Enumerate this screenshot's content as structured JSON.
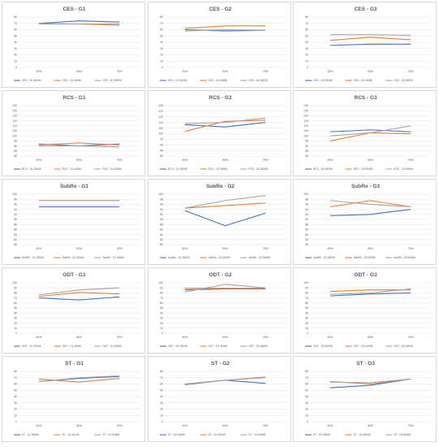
{
  "chart_data": [
    {
      "type": "line",
      "title": "CES - G1",
      "categories": [
        "25%",
        "50%",
        "75%"
      ],
      "ylim": [
        0,
        80
      ],
      "ystep": 10,
      "series": [
        {
          "name": "CES - G1 3000K",
          "values": [
            70,
            74,
            72
          ]
        },
        {
          "name": "CES - G1 4000K",
          "values": [
            70,
            69,
            67
          ]
        },
        {
          "name": "CES - G1 6000K",
          "values": [
            69,
            69,
            69
          ]
        }
      ]
    },
    {
      "type": "line",
      "title": "CES - G2",
      "categories": [
        "25%",
        "50%",
        "75%"
      ],
      "ylim": [
        0,
        80
      ],
      "ystep": 10,
      "series": [
        {
          "name": "CES - G2 3000K",
          "values": [
            60,
            58,
            59
          ]
        },
        {
          "name": "CES - G2 4000K",
          "values": [
            62,
            66,
            66
          ]
        },
        {
          "name": "CES - G2 6000K",
          "values": [
            58,
            60,
            59
          ]
        }
      ]
    },
    {
      "type": "line",
      "title": "CES - G3",
      "categories": [
        "25%",
        "50%",
        "75%"
      ],
      "ylim": [
        0,
        80
      ],
      "ystep": 10,
      "series": [
        {
          "name": "CES - G3 3000K",
          "values": [
            35,
            37,
            37
          ]
        },
        {
          "name": "CES - G3 4000K",
          "values": [
            43,
            48,
            44
          ]
        },
        {
          "name": "CES - G3 6000K",
          "values": [
            52,
            52,
            51
          ]
        }
      ]
    },
    {
      "type": "line",
      "title": "RCS - G1",
      "categories": [
        "25%",
        "50%",
        "75%"
      ],
      "ylim": [
        80,
        130
      ],
      "ystep": 5,
      "series": [
        {
          "name": "RCS - G1 3000K",
          "values": [
            92,
            90,
            92
          ]
        },
        {
          "name": "RCS - G1 4000K",
          "values": [
            91,
            93,
            91
          ]
        },
        {
          "name": "RCS - G1 6000K",
          "values": [
            90,
            90,
            89
          ]
        }
      ]
    },
    {
      "type": "line",
      "title": "RCS - G2",
      "categories": [
        "25%",
        "50%",
        "75%"
      ],
      "ylim": [
        80,
        125
      ],
      "ystep": 5,
      "series": [
        {
          "name": "RCS - G2 3000K",
          "values": [
            108,
            106,
            110
          ]
        },
        {
          "name": "RCS - G2 4000K",
          "values": [
            102,
            111,
            112
          ]
        },
        {
          "name": "RCS - G2 6000K",
          "values": [
            109,
            110,
            114
          ]
        }
      ]
    },
    {
      "type": "line",
      "title": "RCS - G3",
      "categories": [
        "25%",
        "50%",
        "75%"
      ],
      "ylim": [
        80,
        130
      ],
      "ystep": 5,
      "series": [
        {
          "name": "RCS - G3 3000K",
          "values": [
            104,
            106,
            104
          ]
        },
        {
          "name": "RCS - G3 4000K",
          "values": [
            95,
            103,
            102
          ]
        },
        {
          "name": "RCS - G3 6000K",
          "values": [
            100,
            103,
            110
          ]
        }
      ]
    },
    {
      "type": "line",
      "title": "SubRe - G1",
      "categories": [
        "25%",
        "50%",
        "75%"
      ],
      "ylim": [
        80,
        100
      ],
      "ystep": 2,
      "series": [
        {
          "name": "SubRe - G1 3000K",
          "values": [
            95,
            95,
            95
          ]
        },
        {
          "name": "SubRe - G1 4000K",
          "values": [
            97.5,
            97.5,
            97.5
          ]
        },
        {
          "name": "SubRe - G1 6000K",
          "values": [
            97.5,
            97.5,
            97.5
          ]
        }
      ]
    },
    {
      "type": "line",
      "title": "SubRe - G2",
      "categories": [
        "25%",
        "50%",
        "75%"
      ],
      "ylim": [
        80,
        100
      ],
      "ystep": 2,
      "series": [
        {
          "name": "SubRe - G2 3000K",
          "values": [
            93.5,
            87.5,
            92.5
          ]
        },
        {
          "name": "SubRe - G2 4000K",
          "values": [
            94.5,
            95.5,
            96.5
          ]
        },
        {
          "name": "SubRe - G2 6000K",
          "values": [
            94.5,
            97.5,
            99.5
          ]
        }
      ]
    },
    {
      "type": "line",
      "title": "SubRe - G3",
      "categories": [
        "25%",
        "50%",
        "75%"
      ],
      "ylim": [
        80,
        100
      ],
      "ystep": 2,
      "series": [
        {
          "name": "SubRe - G3 3000K",
          "values": [
            91.5,
            92,
            94
          ]
        },
        {
          "name": "SubRe - G3 4000K",
          "values": [
            95,
            97.5,
            95
          ]
        },
        {
          "name": "SubRe - G3 6000K",
          "values": [
            97.5,
            96,
            95
          ]
        }
      ]
    },
    {
      "type": "line",
      "title": "ODT - G1",
      "categories": [
        "25%",
        "50%",
        "75%"
      ],
      "ylim": [
        0,
        100
      ],
      "ystep": 10,
      "series": [
        {
          "name": "ODT - G1 3000K",
          "values": [
            70,
            66,
            72
          ]
        },
        {
          "name": "ODT - G1 4000K",
          "values": [
            73,
            81,
            78
          ]
        },
        {
          "name": "ODT - G1 6000K",
          "values": [
            76,
            86,
            90
          ]
        }
      ]
    },
    {
      "type": "line",
      "title": "ODT - G2",
      "categories": [
        "25%",
        "50%",
        "75%"
      ],
      "ylim": [
        0,
        100
      ],
      "ystep": 10,
      "series": [
        {
          "name": "ODT - G2 3000K",
          "values": [
            86,
            88,
            88
          ]
        },
        {
          "name": "ODT - G2 4000K",
          "values": [
            89,
            89,
            89
          ]
        },
        {
          "name": "ODT - G2 6000K",
          "values": [
            82,
            97,
            90
          ]
        }
      ]
    },
    {
      "type": "line",
      "title": "ODT - G3",
      "categories": [
        "25%",
        "50%",
        "75%"
      ],
      "ylim": [
        0,
        100
      ],
      "ystep": 10,
      "series": [
        {
          "name": "ODT - G3 3000K",
          "values": [
            74,
            78,
            80
          ]
        },
        {
          "name": "ODT - G3 4000K",
          "values": [
            83,
            86,
            86
          ]
        },
        {
          "name": "ODT - G3 6000K",
          "values": [
            77,
            80,
            88
          ]
        }
      ]
    },
    {
      "type": "line",
      "title": "ST - G1",
      "categories": [
        "25%",
        "50%",
        "75%"
      ],
      "ylim": [
        0,
        80
      ],
      "ystep": 10,
      "series": [
        {
          "name": "ST - G1 3000K",
          "values": [
            64,
            69,
            72
          ]
        },
        {
          "name": "ST - G1 4000K",
          "values": [
            68,
            63,
            69
          ]
        },
        {
          "name": "ST - G1 6000K",
          "values": [
            64,
            70,
            73
          ]
        }
      ]
    },
    {
      "type": "line",
      "title": "ST - G2",
      "categories": [
        "25%",
        "50%",
        "75%"
      ],
      "ylim": [
        0,
        80
      ],
      "ystep": 10,
      "series": [
        {
          "name": "ST - G2 3000K",
          "values": [
            59,
            66,
            61
          ]
        },
        {
          "name": "ST - G2 4000K",
          "values": [
            60,
            66,
            71
          ]
        },
        {
          "name": "ST - G2 6000K",
          "values": [
            60,
            66,
            70
          ]
        }
      ]
    },
    {
      "type": "line",
      "title": "ST - G3",
      "categories": [
        "25%",
        "50%",
        "75%"
      ],
      "ylim": [
        0,
        80
      ],
      "ystep": 10,
      "series": [
        {
          "name": "ST - G3 3000K",
          "values": [
            54,
            58,
            68
          ]
        },
        {
          "name": "ST - G3 4000K",
          "values": [
            64,
            60,
            68
          ]
        },
        {
          "name": "ST - G3 6000K",
          "values": [
            63,
            62,
            68
          ]
        }
      ]
    }
  ],
  "colors": {
    "series": [
      "#4472c4",
      "#ed7d31",
      "#a5a5a5"
    ],
    "grid": "#d9d9d9",
    "text": "#595959"
  },
  "grid": true,
  "legend_position": "bottom"
}
